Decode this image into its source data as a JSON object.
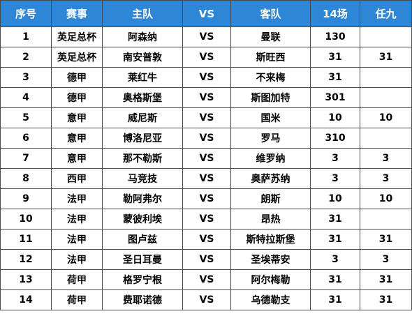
{
  "headers": [
    "序号",
    "赛事",
    "主队",
    "VS",
    "客队",
    "14场",
    "任九"
  ],
  "rows": [
    {
      "num": "1",
      "comp": "英足总杯",
      "home": "阿森纳",
      "vs": "VS",
      "away": "曼联",
      "s14": "130",
      "r9": ""
    },
    {
      "num": "2",
      "comp": "英足总杯",
      "home": "南安普敦",
      "vs": "VS",
      "away": "斯旺西",
      "s14": "31",
      "r9": "31"
    },
    {
      "num": "3",
      "comp": "德甲",
      "home": "莱红牛",
      "vs": "VS",
      "away": "不来梅",
      "s14": "31",
      "r9": ""
    },
    {
      "num": "4",
      "comp": "德甲",
      "home": "奥格斯堡",
      "vs": "VS",
      "away": "斯图加特",
      "s14": "301",
      "r9": ""
    },
    {
      "num": "5",
      "comp": "意甲",
      "home": "威尼斯",
      "vs": "VS",
      "away": "国米",
      "s14": "10",
      "r9": "10"
    },
    {
      "num": "6",
      "comp": "意甲",
      "home": "博洛尼亚",
      "vs": "VS",
      "away": "罗马",
      "s14": "310",
      "r9": ""
    },
    {
      "num": "7",
      "comp": "意甲",
      "home": "那不勒斯",
      "vs": "VS",
      "away": "维罗纳",
      "s14": "3",
      "r9": "3"
    },
    {
      "num": "8",
      "comp": "西甲",
      "home": "马竞技",
      "vs": "VS",
      "away": "奥萨苏纳",
      "s14": "3",
      "r9": "3"
    },
    {
      "num": "9",
      "comp": "法甲",
      "home": "勒阿弗尔",
      "vs": "VS",
      "away": "朗斯",
      "s14": "10",
      "r9": "10"
    },
    {
      "num": "10",
      "comp": "法甲",
      "home": "蒙彼利埃",
      "vs": "VS",
      "away": "昂热",
      "s14": "31",
      "r9": ""
    },
    {
      "num": "11",
      "comp": "法甲",
      "home": "图卢兹",
      "vs": "VS",
      "away": "斯特拉斯堡",
      "s14": "31",
      "r9": "31"
    },
    {
      "num": "12",
      "comp": "法甲",
      "home": "圣日耳曼",
      "vs": "VS",
      "away": "圣埃蒂安",
      "s14": "3",
      "r9": "3"
    },
    {
      "num": "13",
      "comp": "荷甲",
      "home": "格罗宁根",
      "vs": "VS",
      "away": "阿尔梅勒",
      "s14": "31",
      "r9": "31"
    },
    {
      "num": "14",
      "comp": "荷甲",
      "home": "费耶诺德",
      "vs": "VS",
      "away": "乌德勒支",
      "s14": "31",
      "r9": "31"
    }
  ],
  "colors": {
    "header_bg": "#2e86d6",
    "header_text": "#ffffff",
    "grid_line": "#4a4a4a",
    "cell_text": "#000000"
  }
}
